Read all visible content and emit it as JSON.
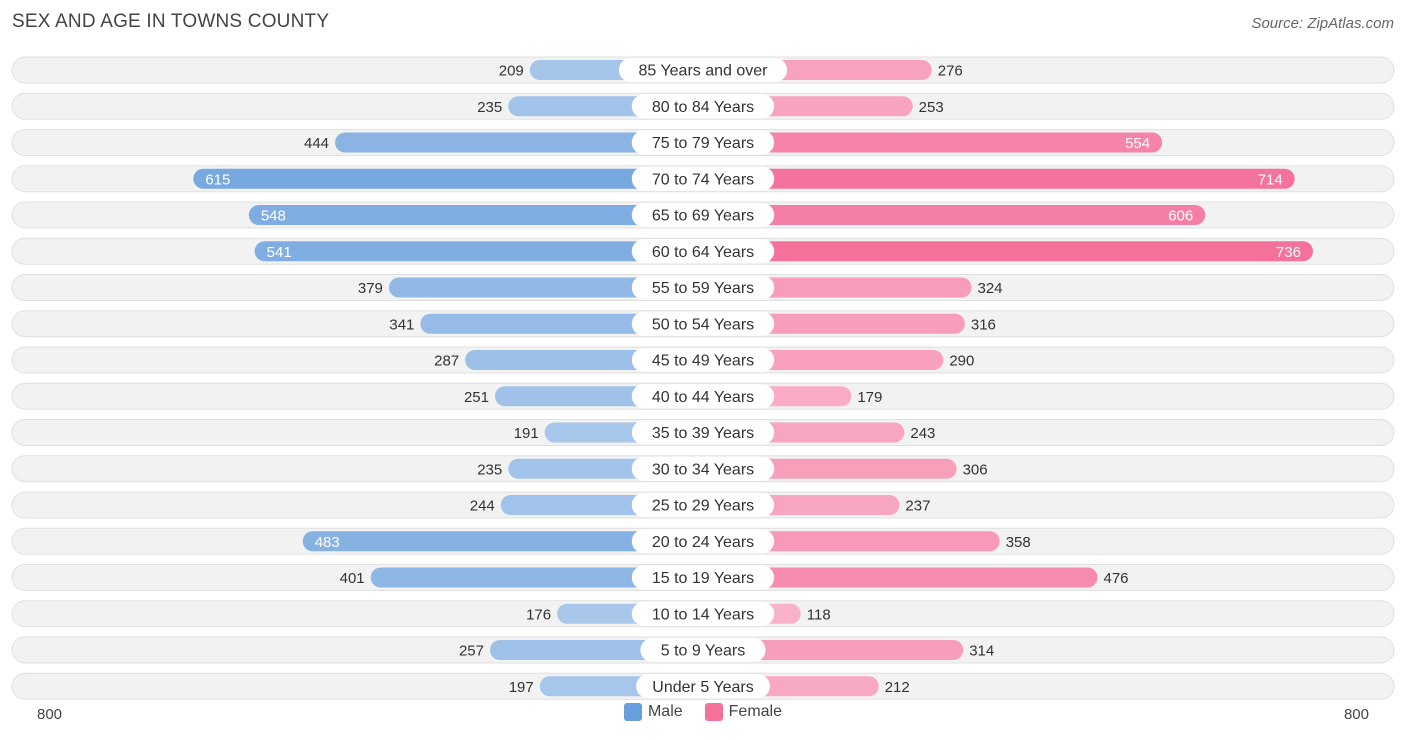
{
  "title": "SEX AND AGE IN TOWNS COUNTY",
  "source": "Source: ZipAtlas.com",
  "chart_data": {
    "type": "bar",
    "orientation": "horizontal-diverging",
    "categories": [
      "85 Years and over",
      "80 to 84 Years",
      "75 to 79 Years",
      "70 to 74 Years",
      "65 to 69 Years",
      "60 to 64 Years",
      "55 to 59 Years",
      "50 to 54 Years",
      "45 to 49 Years",
      "40 to 44 Years",
      "35 to 39 Years",
      "30 to 34 Years",
      "25 to 29 Years",
      "20 to 24 Years",
      "15 to 19 Years",
      "10 to 14 Years",
      "5 to 9 Years",
      "Under 5 Years"
    ],
    "series": [
      {
        "name": "Male",
        "color": "#6a9fdd",
        "values": [
          209,
          235,
          444,
          615,
          548,
          541,
          379,
          341,
          287,
          251,
          191,
          235,
          244,
          483,
          401,
          176,
          257,
          197
        ]
      },
      {
        "name": "Female",
        "color": "#f4719a",
        "values": [
          276,
          253,
          554,
          714,
          606,
          736,
          324,
          316,
          290,
          179,
          243,
          306,
          237,
          358,
          476,
          118,
          314,
          212
        ]
      }
    ],
    "xlim": [
      -800,
      800
    ],
    "axis_left_label": "800",
    "axis_right_label": "800",
    "legend_placement": "bottom-center"
  }
}
